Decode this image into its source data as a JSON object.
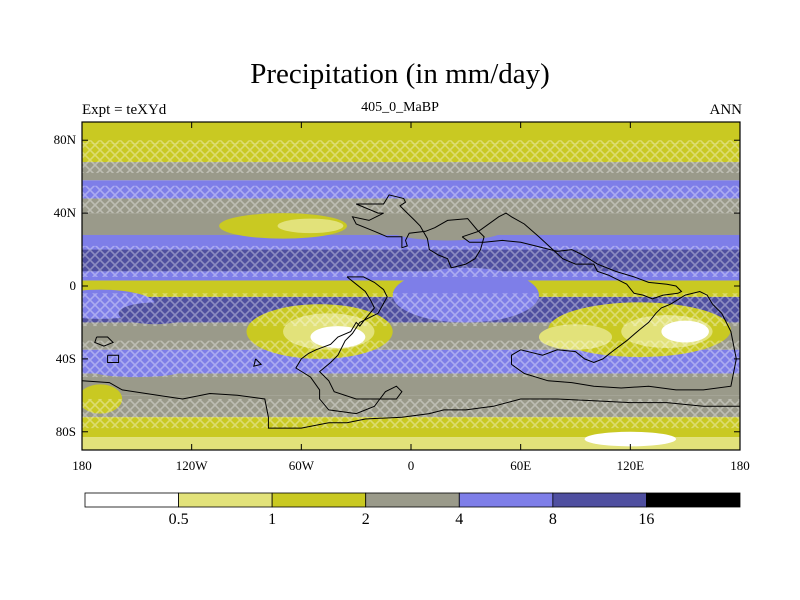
{
  "title": "Precipitation (in mm/day)",
  "subtitle_left": "Expt = teXYd",
  "subtitle_center": "405_0_MaBP",
  "subtitle_right": "ANN",
  "map": {
    "lon_range": [
      -180,
      180
    ],
    "lat_range": [
      -90,
      90
    ],
    "x_ticks": [
      {
        "lon": -180,
        "label": "180"
      },
      {
        "lon": -120,
        "label": "120W"
      },
      {
        "lon": -60,
        "label": "60W"
      },
      {
        "lon": 0,
        "label": "0"
      },
      {
        "lon": 60,
        "label": "60E"
      },
      {
        "lon": 120,
        "label": "120E"
      },
      {
        "lon": 180,
        "label": "180"
      }
    ],
    "y_ticks": [
      {
        "lat": 80,
        "label": "80N"
      },
      {
        "lat": 40,
        "label": "40N"
      },
      {
        "lat": 0,
        "label": "0"
      },
      {
        "lat": -40,
        "label": "40S"
      },
      {
        "lat": -80,
        "label": "80S"
      }
    ],
    "zonal_bands": [
      {
        "lat_top": 90,
        "lat_bottom": 78,
        "class": 2
      },
      {
        "lat_top": 78,
        "lat_bottom": 68,
        "class": 2
      },
      {
        "lat_top": 68,
        "lat_bottom": 58,
        "class": 3
      },
      {
        "lat_top": 58,
        "lat_bottom": 48,
        "class": 4
      },
      {
        "lat_top": 48,
        "lat_bottom": 40,
        "class": 3
      },
      {
        "lat_top": 40,
        "lat_bottom": 28,
        "class": 3
      },
      {
        "lat_top": 28,
        "lat_bottom": 20,
        "class": 4
      },
      {
        "lat_top": 20,
        "lat_bottom": 8,
        "class": 5
      },
      {
        "lat_top": 8,
        "lat_bottom": 3,
        "class": 4
      },
      {
        "lat_top": 3,
        "lat_bottom": -6,
        "class": 2
      },
      {
        "lat_top": -6,
        "lat_bottom": -20,
        "class": 5
      },
      {
        "lat_top": -20,
        "lat_bottom": -35,
        "class": 3
      },
      {
        "lat_top": -35,
        "lat_bottom": -48,
        "class": 4
      },
      {
        "lat_top": -48,
        "lat_bottom": -60,
        "class": 3
      },
      {
        "lat_top": -60,
        "lat_bottom": -72,
        "class": 3
      },
      {
        "lat_top": -72,
        "lat_bottom": -83,
        "class": 2
      },
      {
        "lat_top": -83,
        "lat_bottom": -90,
        "class": 1
      }
    ],
    "regions": [
      {
        "lon": -70,
        "lat": 33,
        "rx": 35,
        "ry": 7,
        "class": 2
      },
      {
        "lon": -55,
        "lat": 33,
        "rx": 18,
        "ry": 4,
        "class": 1
      },
      {
        "lon": 20,
        "lat": 30,
        "rx": 30,
        "ry": 5,
        "class": 3
      },
      {
        "lon": -170,
        "lat": -10,
        "rx": 30,
        "ry": 8,
        "class": 4
      },
      {
        "lon": -140,
        "lat": -15,
        "rx": 20,
        "ry": 6,
        "class": 5
      },
      {
        "lon": -50,
        "lat": -25,
        "rx": 40,
        "ry": 15,
        "class": 2
      },
      {
        "lon": -45,
        "lat": -25,
        "rx": 25,
        "ry": 10,
        "class": 1
      },
      {
        "lon": -40,
        "lat": -28,
        "rx": 15,
        "ry": 6,
        "class": 0
      },
      {
        "lon": 125,
        "lat": -24,
        "rx": 50,
        "ry": 15,
        "class": 2
      },
      {
        "lon": 140,
        "lat": -25,
        "rx": 25,
        "ry": 9,
        "class": 1
      },
      {
        "lon": 150,
        "lat": -25,
        "rx": 13,
        "ry": 6,
        "class": 0
      },
      {
        "lon": 90,
        "lat": -28,
        "rx": 20,
        "ry": 7,
        "class": 1
      },
      {
        "lon": 30,
        "lat": -5,
        "rx": 40,
        "ry": 15,
        "class": 4
      },
      {
        "lon": -150,
        "lat": -45,
        "rx": 28,
        "ry": 5,
        "class": 4
      },
      {
        "lon": -170,
        "lat": -62,
        "rx": 12,
        "ry": 8,
        "class": 2
      },
      {
        "lon": 120,
        "lat": -84,
        "rx": 25,
        "ry": 4,
        "class": 0
      }
    ],
    "hatch_regions": [
      {
        "lat_top": 80,
        "lat_bottom": 62
      },
      {
        "lat_top": 55,
        "lat_bottom": 40
      },
      {
        "lat_top": 22,
        "lat_bottom": 5
      },
      {
        "lat_top": -4,
        "lat_bottom": -22
      },
      {
        "lat_top": -30,
        "lat_bottom": -50
      },
      {
        "lat_top": -62,
        "lat_bottom": -78
      }
    ],
    "coastlines": [
      [
        [
          -30,
          45
        ],
        [
          -15,
          45
        ],
        [
          -12,
          50
        ],
        [
          -8,
          49
        ],
        [
          -4,
          48
        ],
        [
          -3,
          46
        ],
        [
          -6,
          44
        ],
        [
          -2,
          40
        ],
        [
          2,
          36
        ],
        [
          5,
          33
        ],
        [
          9,
          26
        ],
        [
          10,
          20
        ],
        [
          15,
          17
        ],
        [
          20,
          15
        ],
        [
          22,
          10
        ],
        [
          30,
          12
        ],
        [
          35,
          15
        ],
        [
          38,
          20
        ],
        [
          40,
          27
        ],
        [
          36,
          31
        ],
        [
          31,
          37
        ],
        [
          20,
          36
        ],
        [
          13,
          32
        ],
        [
          8,
          30
        ],
        [
          -1,
          29
        ],
        [
          -3,
          25
        ],
        [
          -2,
          22
        ],
        [
          -5,
          21
        ],
        [
          -5,
          27
        ],
        [
          -13,
          27
        ],
        [
          -20,
          30
        ],
        [
          -30,
          34
        ],
        [
          -32,
          38
        ],
        [
          -23,
          36
        ],
        [
          -15,
          40
        ],
        [
          -18,
          40
        ],
        [
          -30,
          45
        ]
      ],
      [
        [
          28,
          27
        ],
        [
          37,
          30
        ],
        [
          48,
          38
        ],
        [
          52,
          40
        ],
        [
          55,
          38
        ],
        [
          62,
          34
        ],
        [
          70,
          27
        ],
        [
          83,
          15
        ],
        [
          90,
          12
        ],
        [
          100,
          12
        ],
        [
          102,
          8
        ],
        [
          108,
          6
        ],
        [
          112,
          4
        ],
        [
          118,
          1
        ],
        [
          122,
          -4
        ],
        [
          127,
          -5
        ],
        [
          132,
          -7
        ],
        [
          138,
          -5
        ],
        [
          146,
          -4
        ],
        [
          148,
          -3
        ],
        [
          145,
          0
        ],
        [
          140,
          1
        ],
        [
          130,
          2
        ],
        [
          122,
          5
        ],
        [
          112,
          8
        ],
        [
          102,
          12
        ],
        [
          94,
          17
        ],
        [
          88,
          20
        ],
        [
          80,
          19
        ],
        [
          68,
          22
        ],
        [
          60,
          24
        ],
        [
          50,
          25
        ],
        [
          40,
          24
        ],
        [
          32,
          24
        ],
        [
          28,
          27
        ]
      ],
      [
        [
          -35,
          5
        ],
        [
          -30,
          1
        ],
        [
          -25,
          -3
        ],
        [
          -22,
          -8
        ],
        [
          -20,
          -12
        ],
        [
          -25,
          -18
        ],
        [
          -28,
          -22
        ],
        [
          -30,
          -20
        ],
        [
          -33,
          -25
        ],
        [
          -40,
          -28
        ],
        [
          -44,
          -32
        ],
        [
          -52,
          -35
        ],
        [
          -56,
          -37
        ],
        [
          -60,
          -40
        ],
        [
          -63,
          -45
        ],
        [
          -55,
          -50
        ],
        [
          -50,
          -57
        ],
        [
          -50,
          -62
        ],
        [
          -45,
          -68
        ],
        [
          -30,
          -70
        ],
        [
          -20,
          -66
        ],
        [
          -14,
          -58
        ],
        [
          -8,
          -55
        ],
        [
          -5,
          -58
        ],
        [
          -8,
          -62
        ],
        [
          -15,
          -62
        ],
        [
          -30,
          -62
        ],
        [
          -42,
          -58
        ],
        [
          -45,
          -52
        ],
        [
          -50,
          -47
        ],
        [
          -44,
          -42
        ],
        [
          -40,
          -38
        ],
        [
          -36,
          -30
        ],
        [
          -32,
          -26
        ],
        [
          -28,
          -20
        ],
        [
          -18,
          -15
        ],
        [
          -13,
          -6
        ],
        [
          -15,
          -2
        ],
        [
          -20,
          2
        ],
        [
          -26,
          5
        ],
        [
          -35,
          5
        ]
      ],
      [
        [
          60,
          -35
        ],
        [
          72,
          -38
        ],
        [
          80,
          -35
        ],
        [
          90,
          -36
        ],
        [
          95,
          -40
        ],
        [
          100,
          -42
        ],
        [
          105,
          -40
        ],
        [
          110,
          -36
        ],
        [
          118,
          -30
        ],
        [
          125,
          -24
        ],
        [
          130,
          -20
        ],
        [
          134,
          -15
        ],
        [
          137,
          -12
        ],
        [
          142,
          -10
        ],
        [
          150,
          -5
        ],
        [
          158,
          -3
        ],
        [
          162,
          -5
        ],
        [
          165,
          -10
        ],
        [
          170,
          -15
        ],
        [
          175,
          -25
        ],
        [
          178,
          -40
        ],
        [
          175,
          -55
        ],
        [
          160,
          -57
        ],
        [
          145,
          -57
        ],
        [
          130,
          -55
        ],
        [
          115,
          -56
        ],
        [
          100,
          -55
        ],
        [
          88,
          -53
        ],
        [
          75,
          -52
        ],
        [
          62,
          -48
        ],
        [
          55,
          -43
        ],
        [
          55,
          -38
        ],
        [
          60,
          -35
        ]
      ],
      [
        [
          -180,
          -52
        ],
        [
          -165,
          -53
        ],
        [
          -158,
          -57
        ],
        [
          -145,
          -59
        ],
        [
          -125,
          -62
        ],
        [
          -110,
          -59
        ],
        [
          -95,
          -60
        ],
        [
          -80,
          -62
        ],
        [
          -78,
          -72
        ],
        [
          -78,
          -78
        ],
        [
          -60,
          -78
        ],
        [
          -45,
          -75
        ],
        [
          -35,
          -75
        ],
        [
          -25,
          -73
        ],
        [
          -5,
          -72
        ],
        [
          10,
          -70
        ],
        [
          18,
          -68
        ],
        [
          30,
          -68
        ],
        [
          45,
          -66
        ],
        [
          60,
          -62
        ],
        [
          80,
          -62
        ],
        [
          100,
          -63
        ],
        [
          120,
          -64
        ],
        [
          140,
          -64
        ],
        [
          160,
          -66
        ],
        [
          175,
          -66
        ],
        [
          180,
          -66
        ]
      ],
      [
        [
          -172,
          -28
        ],
        [
          -166,
          -28
        ],
        [
          -163,
          -31
        ],
        [
          -168,
          -33
        ],
        [
          -173,
          -31
        ],
        [
          -172,
          -28
        ]
      ],
      [
        [
          -85,
          -40
        ],
        [
          -82,
          -43
        ],
        [
          -86,
          -44
        ],
        [
          -85,
          -40
        ]
      ],
      [
        [
          -166,
          -38
        ],
        [
          -160,
          -38
        ],
        [
          -160,
          -42
        ],
        [
          -166,
          -42
        ],
        [
          -166,
          -38
        ]
      ]
    ]
  },
  "colorbar": {
    "colors": [
      "#ffffff",
      "#e2e27a",
      "#c9c922",
      "#9a9a8a",
      "#7e7ee8",
      "#4f4fa0",
      "#000000"
    ],
    "labels": [
      "0.5",
      "1",
      "2",
      "4",
      "8",
      "16"
    ]
  }
}
